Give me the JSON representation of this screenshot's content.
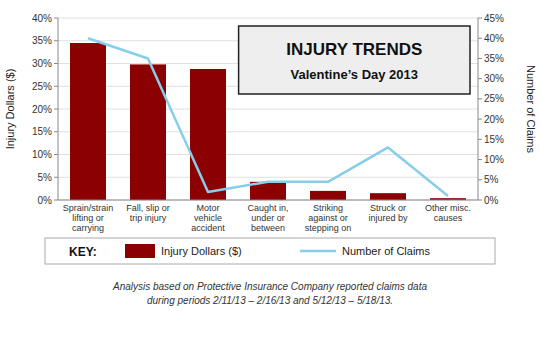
{
  "chart_data": {
    "type": "bar",
    "title": "INJURY TRENDS",
    "subtitle": "Valentine’s Day 2013",
    "categories": [
      "Sprain/strain\nlifting or\ncarrying",
      "Fall, slip or\ntrip injury",
      "Motor\nvehicle\naccident",
      "Caught in,\nunder or\nbetween",
      "Striking\nagainst or\nstepping on",
      "Struck or\ninjured by",
      "Other misc.\ncauses"
    ],
    "series": [
      {
        "name": "Injury Dollars ($)",
        "type": "bar",
        "color": "#8B0000",
        "values": [
          34.5,
          29.8,
          28.8,
          4.0,
          2.0,
          1.5,
          0.4
        ]
      },
      {
        "name": "Number of Claims",
        "type": "line",
        "color": "#87CEEB",
        "axis": "y2",
        "values": [
          40,
          35,
          2,
          4.5,
          4.5,
          13,
          1
        ]
      }
    ],
    "ylabel": "Injury Dollars ($)",
    "y2label": "Number of Claims",
    "ylim": [
      0,
      40
    ],
    "yticks": [
      {
        "value": 0,
        "label": "0%"
      },
      {
        "value": 5,
        "label": "5%"
      },
      {
        "value": 10,
        "label": "10%"
      },
      {
        "value": 15,
        "label": "15%"
      },
      {
        "value": 20,
        "label": "20%"
      },
      {
        "value": 25,
        "label": "25%"
      },
      {
        "value": 30,
        "label": "30%"
      },
      {
        "value": 35,
        "label": "35%"
      },
      {
        "value": 40,
        "label": "40%"
      }
    ],
    "y2lim": [
      0,
      45
    ],
    "y2ticks": [
      {
        "value": 0,
        "label": "0%"
      },
      {
        "value": 5,
        "label": "5%"
      },
      {
        "value": 10,
        "label": "10%"
      },
      {
        "value": 15,
        "label": "15%"
      },
      {
        "value": 20,
        "label": "20%"
      },
      {
        "value": 25,
        "label": "25%"
      },
      {
        "value": 30,
        "label": "30%"
      },
      {
        "value": 35,
        "label": "35%"
      },
      {
        "value": 40,
        "label": "40%"
      },
      {
        "value": 45,
        "label": "45%"
      }
    ],
    "grid": true,
    "legend": "bottom",
    "legend_title": "KEY:",
    "footnote": "Analysis based on Protective Insurance Company reported claims data\nduring periods 2/11/13 – 2/16/13 and 5/12/13 – 5/18/13."
  }
}
